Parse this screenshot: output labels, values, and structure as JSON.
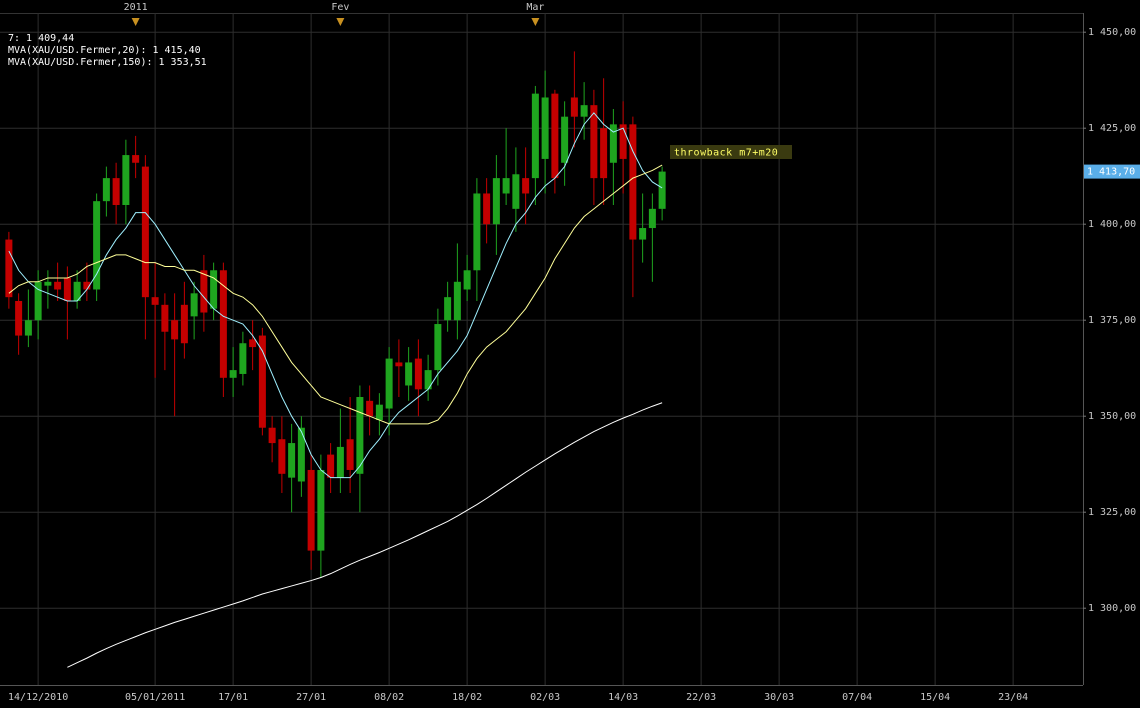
{
  "chart_data": {
    "type": "candlestick",
    "categories": [
      null,
      null,
      null,
      "14/12/2010",
      null,
      null,
      null,
      null,
      null,
      null,
      null,
      null,
      null,
      null,
      null,
      "05/01/2011",
      null,
      null,
      null,
      null,
      null,
      null,
      null,
      "17/01",
      null,
      null,
      null,
      null,
      null,
      null,
      null,
      "27/01",
      null,
      null,
      null,
      null,
      null,
      null,
      null,
      "08/02",
      null,
      null,
      null,
      null,
      null,
      null,
      null,
      "18/02",
      null,
      null,
      null,
      null,
      null,
      null,
      null,
      "02/03",
      null,
      null,
      null,
      null,
      null,
      null,
      null,
      "14/03",
      null,
      null,
      null,
      null,
      null,
      null,
      null,
      "22/03",
      null,
      null,
      null,
      null,
      null,
      null,
      null,
      "30/03",
      null,
      null,
      null,
      null,
      null,
      null,
      null,
      "07/04",
      null,
      null,
      null,
      null,
      null,
      null,
      null,
      "15/04",
      null,
      null,
      null,
      null,
      null,
      null,
      null,
      "23/04",
      null,
      null,
      null,
      null,
      null,
      null
    ],
    "open": [
      1396,
      1380,
      1371,
      1375,
      1384,
      1385,
      1386,
      1380,
      1385,
      1383,
      1406,
      1412,
      1405,
      1418,
      1415,
      1381,
      1379,
      1375,
      1379,
      1376,
      1388,
      1378,
      1388,
      1360,
      1361,
      1370,
      1371,
      1347,
      1344,
      1334,
      1333,
      1336,
      1315,
      1340,
      1334,
      1344,
      1335,
      1354,
      1349,
      1352,
      1364,
      1358,
      1365,
      1357,
      1362,
      1375,
      1375,
      1383,
      1388,
      1408,
      1400,
      1408,
      1404,
      1412,
      1412,
      1417,
      1434,
      1416,
      1433,
      1428,
      1431,
      1425,
      1416,
      1426,
      1426,
      1396,
      1399,
      1404,
      null,
      null,
      null,
      null,
      null,
      null,
      null,
      null,
      null,
      null,
      null,
      null,
      null,
      null,
      null,
      null,
      null,
      null,
      null,
      null,
      null,
      null,
      null,
      null,
      null,
      null,
      null,
      null,
      null,
      null,
      null,
      null,
      null,
      null,
      null,
      null,
      null,
      null,
      null,
      null,
      null,
      null
    ],
    "high": [
      1398,
      1382,
      1383,
      1388,
      1388,
      1390,
      1389,
      1388,
      1390,
      1408,
      1415,
      1416,
      1422,
      1423,
      1418,
      1390,
      1382,
      1382,
      1385,
      1385,
      1392,
      1390,
      1390,
      1368,
      1372,
      1375,
      1373,
      1350,
      1350,
      1348,
      1350,
      1340,
      1340,
      1343,
      1352,
      1355,
      1358,
      1358,
      1356,
      1368,
      1370,
      1368,
      1370,
      1366,
      1378,
      1385,
      1395,
      1392,
      1412,
      1412,
      1418,
      1425,
      1420,
      1420,
      1436,
      1440,
      1435,
      1432,
      1445,
      1437,
      1435,
      1438,
      1430,
      1432,
      1428,
      1408,
      1408,
      1415,
      null,
      null,
      null,
      null,
      null,
      null,
      null,
      null,
      null,
      null,
      null,
      null,
      null,
      null,
      null,
      null,
      null,
      null,
      null,
      null,
      null,
      null,
      null,
      null,
      null,
      null,
      null,
      null,
      null,
      null,
      null,
      null,
      null,
      null,
      null,
      null,
      null,
      null,
      null,
      null,
      null,
      null
    ],
    "low": [
      1378,
      1366,
      1368,
      1370,
      1378,
      1380,
      1370,
      1378,
      1380,
      1380,
      1402,
      1400,
      1400,
      1412,
      1370,
      1360,
      1362,
      1350,
      1365,
      1370,
      1372,
      1375,
      1355,
      1355,
      1358,
      1362,
      1345,
      1338,
      1330,
      1325,
      1329,
      1310,
      1308,
      1330,
      1330,
      1330,
      1325,
      1345,
      1345,
      1345,
      1355,
      1354,
      1350,
      1354,
      1358,
      1372,
      1370,
      1380,
      1380,
      1395,
      1392,
      1405,
      1398,
      1400,
      1405,
      1408,
      1408,
      1410,
      1420,
      1422,
      1405,
      1405,
      1405,
      1408,
      1381,
      1390,
      1385,
      1401,
      null,
      null,
      null,
      null,
      null,
      null,
      null,
      null,
      null,
      null,
      null,
      null,
      null,
      null,
      null,
      null,
      null,
      null,
      null,
      null,
      null,
      null,
      null,
      null,
      null,
      null,
      null,
      null,
      null,
      null,
      null,
      null,
      null,
      null,
      null,
      null,
      null,
      null,
      null,
      null,
      null,
      null
    ],
    "close": [
      1381,
      1371,
      1375,
      1385,
      1385,
      1383,
      1380,
      1385,
      1383,
      1406,
      1412,
      1405,
      1418,
      1416,
      1381,
      1379,
      1372,
      1370,
      1369,
      1382,
      1377,
      1388,
      1360,
      1362,
      1369,
      1368,
      1347,
      1343,
      1335,
      1343,
      1347,
      1315,
      1336,
      1334,
      1342,
      1336,
      1355,
      1350,
      1353,
      1365,
      1363,
      1364,
      1357,
      1362,
      1374,
      1381,
      1385,
      1388,
      1408,
      1400,
      1412,
      1412,
      1413,
      1408,
      1434,
      1433,
      1412,
      1428,
      1428,
      1431,
      1412,
      1412,
      1426,
      1417,
      1396,
      1399,
      1404,
      1413.7,
      null,
      null,
      null,
      null,
      null,
      null,
      null,
      null,
      null,
      null,
      null,
      null,
      null,
      null,
      null,
      null,
      null,
      null,
      null,
      null,
      null,
      null,
      null,
      null,
      null,
      null,
      null,
      null,
      null,
      null,
      null,
      null,
      null,
      null,
      null,
      null,
      null,
      null,
      null,
      null,
      null,
      null
    ],
    "up_color": "#1fa51f",
    "down_color": "#c40000",
    "series": [
      {
        "name": "7: 1 409,44",
        "color": "#9ff0ff",
        "values": [
          1393,
          1388,
          1385,
          1383,
          1382,
          1381,
          1380,
          1380,
          1383,
          1387,
          1392,
          1396,
          1399,
          1403,
          1403,
          1400,
          1396,
          1392,
          1388,
          1384,
          1381,
          1378,
          1376,
          1375,
          1374,
          1371,
          1367,
          1361,
          1355,
          1350,
          1346,
          1340,
          1336,
          1334,
          1334,
          1334,
          1337,
          1341,
          1344,
          1348,
          1351,
          1353,
          1355,
          1357,
          1361,
          1364,
          1367,
          1371,
          1377,
          1383,
          1389,
          1395,
          1400,
          1403,
          1407,
          1410,
          1412,
          1415,
          1421,
          1426,
          1429,
          1426,
          1424,
          1425,
          1419,
          1414,
          1411,
          1409.44,
          null,
          null,
          null,
          null,
          null,
          null,
          null,
          null,
          null,
          null,
          null,
          null,
          null,
          null,
          null,
          null,
          null,
          null,
          null,
          null,
          null,
          null,
          null,
          null,
          null,
          null,
          null,
          null,
          null,
          null,
          null,
          null,
          null,
          null,
          null,
          null,
          null,
          null,
          null,
          null,
          null,
          null
        ]
      },
      {
        "name": "MVA(XAU/USD.Fermer,20): 1 415,40",
        "color": "#ffff99",
        "values": [
          1382,
          1384,
          1385,
          1385,
          1386,
          1386,
          1386,
          1387,
          1389,
          1390,
          1391,
          1392,
          1392,
          1391,
          1390,
          1390,
          1389,
          1389,
          1388,
          1388,
          1387,
          1386,
          1384,
          1382,
          1381,
          1379,
          1376,
          1372,
          1368,
          1364,
          1361,
          1358,
          1355,
          1354,
          1353,
          1352,
          1351,
          1350,
          1349,
          1348,
          1348,
          1348,
          1348,
          1348,
          1349,
          1352,
          1356,
          1361,
          1365,
          1368,
          1370,
          1372,
          1375,
          1378,
          1382,
          1386,
          1391,
          1395,
          1399,
          1402,
          1404,
          1406,
          1408,
          1410,
          1412,
          1413,
          1414,
          1415.4,
          null,
          null,
          null,
          null,
          null,
          null,
          null,
          null,
          null,
          null,
          null,
          null,
          null,
          null,
          null,
          null,
          null,
          null,
          null,
          null,
          null,
          null,
          null,
          null,
          null,
          null,
          null,
          null,
          null,
          null,
          null,
          null,
          null,
          null,
          null,
          null,
          null,
          null,
          null,
          null,
          null,
          null
        ]
      },
      {
        "name": "MVA(XAU/USD.Fermer,150): 1 353,51",
        "color": "#ffffff",
        "values": [
          null,
          null,
          null,
          null,
          null,
          null,
          1284.6,
          1285.8,
          1287,
          1288.3,
          1289.5,
          1290.6,
          1291.6,
          1292.6,
          1293.6,
          1294.5,
          1295.4,
          1296.3,
          1297.1,
          1297.9,
          1298.7,
          1299.5,
          1300.3,
          1301.1,
          1301.9,
          1302.8,
          1303.7,
          1304.4,
          1305.1,
          1305.8,
          1306.5,
          1307.2,
          1308,
          1309,
          1310.2,
          1311.4,
          1312.5,
          1313.5,
          1314.5,
          1315.6,
          1316.7,
          1317.8,
          1319,
          1320.2,
          1321.4,
          1322.6,
          1324,
          1325.5,
          1327,
          1328.6,
          1330.3,
          1332,
          1333.7,
          1335.4,
          1337,
          1338.6,
          1340.2,
          1341.7,
          1343.2,
          1344.6,
          1346,
          1347.2,
          1348.4,
          1349.5,
          1350.5,
          1351.6,
          1352.6,
          1353.51,
          null,
          null,
          null,
          null,
          null,
          null,
          null,
          null,
          null,
          null,
          null,
          null,
          null,
          null,
          null,
          null,
          null,
          null,
          null,
          null,
          null,
          null,
          null,
          null,
          null,
          null,
          null,
          null,
          null,
          null,
          null,
          null,
          null,
          null,
          null,
          null,
          null,
          null,
          null,
          null,
          null,
          null
        ]
      }
    ],
    "ylim": [
      1280,
      1455
    ],
    "yticks": [
      {
        "value": 1300,
        "label": "1 300,00"
      },
      {
        "value": 1325,
        "label": "1 325,00"
      },
      {
        "value": 1350,
        "label": "1 350,00"
      },
      {
        "value": 1375,
        "label": "1 375,00"
      },
      {
        "value": 1400,
        "label": "1 400,00"
      },
      {
        "value": 1425,
        "label": "1 425,00"
      },
      {
        "value": 1450,
        "label": "1 450,00"
      }
    ],
    "grid": true,
    "last_price": {
      "value": 1413.7,
      "label": "1 413,70"
    },
    "last_price_color": "#5aaee8",
    "annotation": "throwback m7+m20",
    "period_markers": [
      {
        "label": "2011",
        "index": 13
      },
      {
        "label": "Fev",
        "index": 34
      },
      {
        "label": "Mar",
        "index": 54
      }
    ]
  }
}
